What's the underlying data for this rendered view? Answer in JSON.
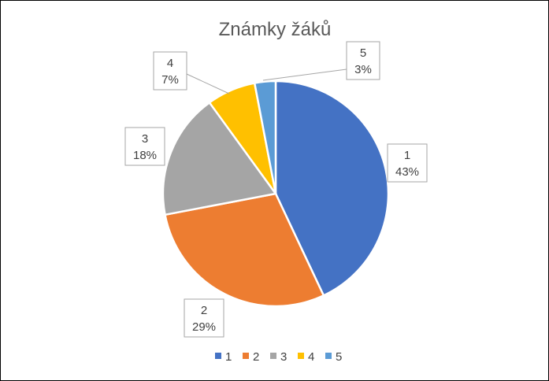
{
  "chart_data": {
    "type": "pie",
    "title": "Známky žáků",
    "categories": [
      "1",
      "2",
      "3",
      "4",
      "5"
    ],
    "values": [
      43,
      29,
      18,
      7,
      3
    ],
    "percent_labels": [
      "43%",
      "29%",
      "18%",
      "7%",
      "3%"
    ],
    "colors": [
      "#4472C4",
      "#ED7D31",
      "#A5A5A5",
      "#FFC000",
      "#5B9BD5"
    ],
    "legend": {
      "position": "bottom",
      "entries": [
        "1",
        "2",
        "3",
        "4",
        "5"
      ]
    },
    "data_labels": "callout-category-percent",
    "start_angle": "top",
    "direction": "clockwise"
  }
}
